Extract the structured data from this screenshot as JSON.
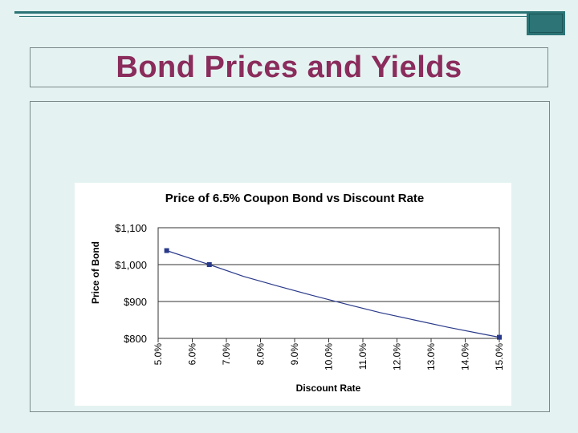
{
  "slide": {
    "title": "Bond Prices and Yields"
  },
  "chart_data": {
    "type": "line",
    "title": "Price of 6.5% Coupon Bond vs Discount Rate",
    "xlabel": "Discount Rate",
    "ylabel": "Price of Bond",
    "categories": [
      "5.0%",
      "6.0%",
      "7.0%",
      "8.0%",
      "9.0%",
      "10.0%",
      "11.0%",
      "12.0%",
      "13.0%",
      "14.0%",
      "15.0%"
    ],
    "x": [
      5,
      6,
      7,
      8,
      9,
      10,
      11,
      12,
      13,
      14,
      15
    ],
    "y_ticks": [
      "$1,100",
      "$1,000",
      "$900",
      "$800"
    ],
    "ylim": [
      800,
      1100
    ],
    "xlim": [
      5,
      15
    ],
    "series": [
      {
        "values": [
          1037.4,
          1000,
          965.3,
          933.3,
          903.7,
          876.2,
          850.7,
          827.1,
          805.1
        ],
        "x": [
          5.6,
          6.5,
          7.5,
          8.5,
          9.5,
          10.5,
          11.5,
          12.5,
          13.5
        ],
        "marked": [
          true,
          true,
          false,
          false,
          false,
          false,
          false,
          false,
          false
        ]
      }
    ],
    "line_points": [
      [
        5.6,
        1038
      ],
      [
        6.5,
        1000
      ],
      [
        7.5,
        966
      ],
      [
        8.5,
        934
      ],
      [
        9.5,
        905
      ],
      [
        10.5,
        878
      ],
      [
        11.5,
        853
      ],
      [
        12.5,
        830
      ],
      [
        13.5,
        809
      ],
      [
        14.5,
        790
      ],
      [
        15.0,
        806
      ]
    ],
    "grid": true,
    "colors": {
      "line": "#2a3a8a",
      "marker": "#2a3a8a",
      "grid": "#333333"
    }
  }
}
